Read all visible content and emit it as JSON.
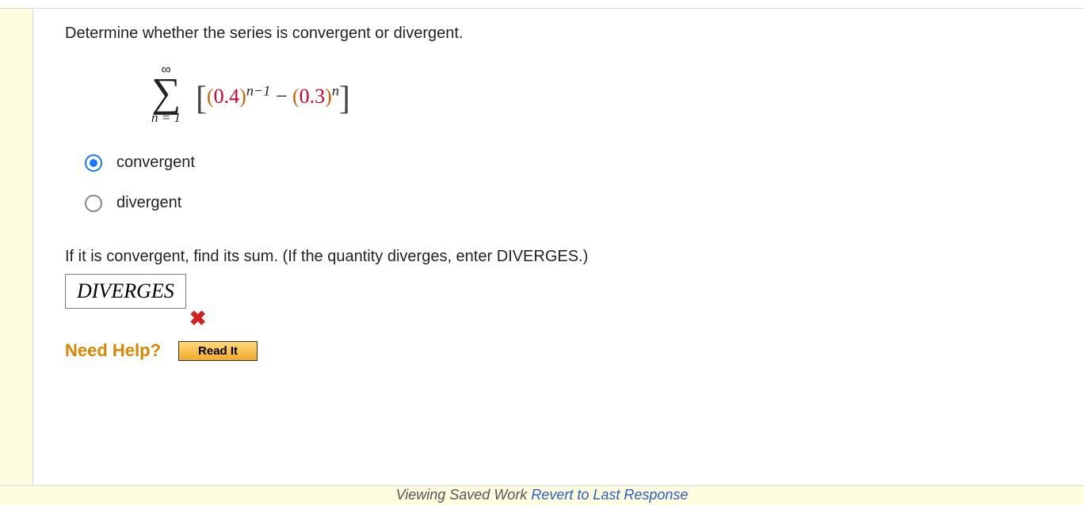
{
  "question": {
    "prompt": "Determine whether the series is convergent or divergent.",
    "formula": {
      "upper": "∞",
      "lower": "n = 1",
      "base1": "(0.4)",
      "exp1": "n−1",
      "minus": " − ",
      "base2": "(0.3)",
      "exp2": "n",
      "colors": {
        "paren": "#cc6600",
        "number": "#cc0033"
      }
    },
    "options": [
      {
        "label": "convergent",
        "selected": true
      },
      {
        "label": "divergent",
        "selected": false
      }
    ],
    "followup": "If it is convergent, find its sum. (If the quantity diverges, enter DIVERGES.)",
    "answer_value": "DIVERGES",
    "feedback": {
      "correct": false,
      "mark": "✖"
    }
  },
  "help": {
    "label": "Need Help?",
    "button": "Read It",
    "label_color": "#d98500"
  },
  "footer": {
    "text_prefix": "Viewing Saved Work ",
    "revert_text": "Revert to Last Response"
  },
  "styling": {
    "page_bg": "#ffffff",
    "highlight_bg": "#fffde0",
    "divider_color": "#d8d8d8",
    "radio_selected": "#1976ff",
    "radio_unselected": "#888888",
    "wrong_color": "#d42020",
    "body_fontsize": 20,
    "formula_fontsize": 26,
    "answer_fontsize": 26
  }
}
